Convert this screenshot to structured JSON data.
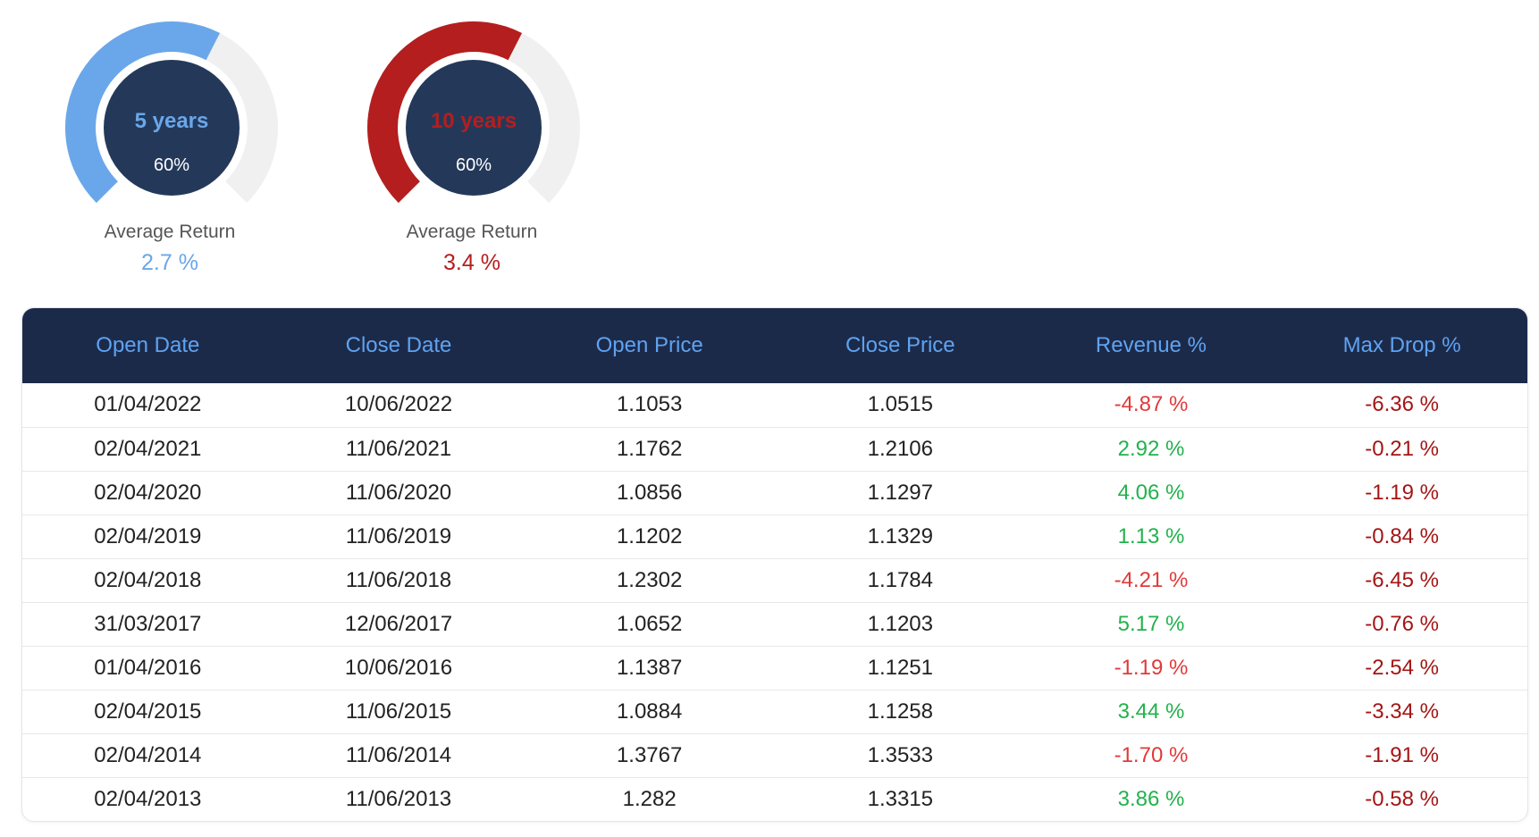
{
  "colors": {
    "gauge_5y": "#6aa7ea",
    "gauge_10y": "#b41e1e",
    "gauge_track": "#f0f0f0",
    "gauge_center": "#24395a",
    "header_bg": "#1c2a4a",
    "header_text": "#5fa3f0",
    "positive": "#22b24c",
    "negative": "#e03a3a",
    "drop": "#a31515"
  },
  "gauges": [
    {
      "title": "5 years",
      "percent_text": "60%",
      "fill_fraction": 0.6,
      "label": "Average Return",
      "value": "2.7 %",
      "color": "#6aa7ea"
    },
    {
      "title": "10 years",
      "percent_text": "60%",
      "fill_fraction": 0.6,
      "label": "Average Return",
      "value": "3.4 %",
      "color": "#b41e1e"
    }
  ],
  "table": {
    "headers": [
      "Open Date",
      "Close Date",
      "Open Price",
      "Close Price",
      "Revenue %",
      "Max Drop %"
    ],
    "rows": [
      [
        "01/04/2022",
        "10/06/2022",
        "1.1053",
        "1.0515",
        "-4.87 %",
        "-6.36 %"
      ],
      [
        "02/04/2021",
        "11/06/2021",
        "1.1762",
        "1.2106",
        "2.92 %",
        "-0.21 %"
      ],
      [
        "02/04/2020",
        "11/06/2020",
        "1.0856",
        "1.1297",
        "4.06 %",
        "-1.19 %"
      ],
      [
        "02/04/2019",
        "11/06/2019",
        "1.1202",
        "1.1329",
        "1.13 %",
        "-0.84 %"
      ],
      [
        "02/04/2018",
        "11/06/2018",
        "1.2302",
        "1.1784",
        "-4.21 %",
        "-6.45 %"
      ],
      [
        "31/03/2017",
        "12/06/2017",
        "1.0652",
        "1.1203",
        "5.17 %",
        "-0.76 %"
      ],
      [
        "01/04/2016",
        "10/06/2016",
        "1.1387",
        "1.1251",
        "-1.19 %",
        "-2.54 %"
      ],
      [
        "02/04/2015",
        "11/06/2015",
        "1.0884",
        "1.1258",
        "3.44 %",
        "-3.34 %"
      ],
      [
        "02/04/2014",
        "11/06/2014",
        "1.3767",
        "1.3533",
        "-1.70 %",
        "-1.91 %"
      ],
      [
        "02/04/2013",
        "11/06/2013",
        "1.282",
        "1.3315",
        "3.86 %",
        "-0.58 %"
      ]
    ]
  }
}
